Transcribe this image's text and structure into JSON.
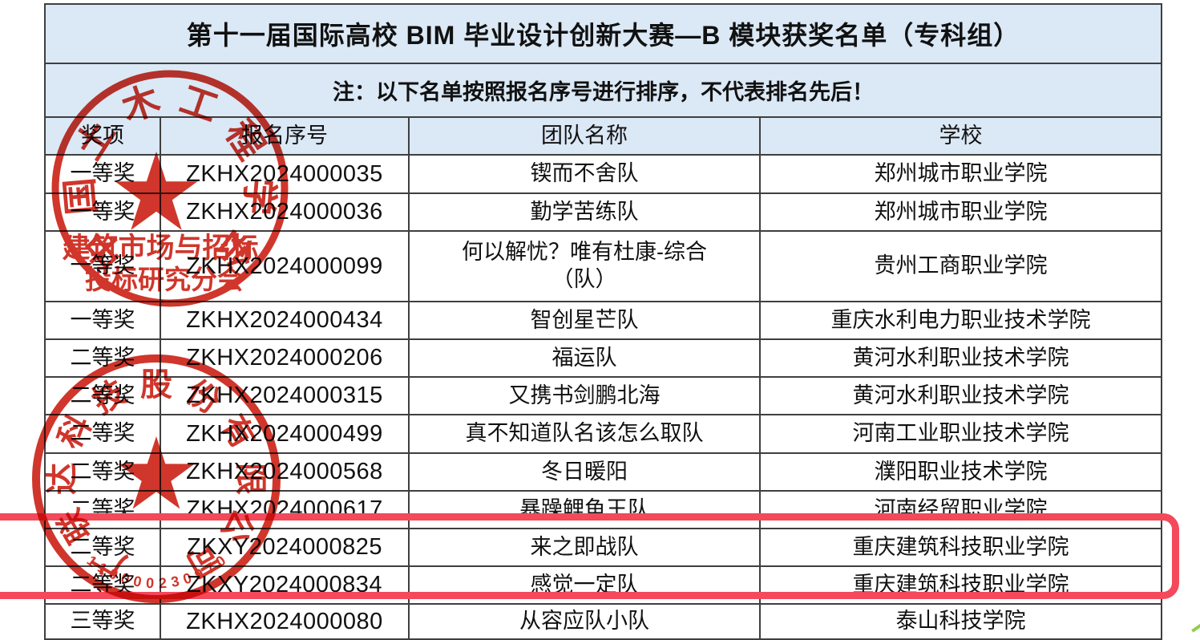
{
  "table": {
    "title": "第十一届国际高校 BIM 毕业设计创新大赛—B 模块获奖名单（专科组）",
    "note": "注：以下名单按照报名序号进行排序，不代表排名先后！",
    "headers": [
      "奖项",
      "报名序号",
      "团队名称",
      "学校"
    ],
    "rows": [
      {
        "award": "一等奖",
        "reg_no": "ZKHX2024000035",
        "team": "锲而不舍队",
        "school": "郑州城市职业学院"
      },
      {
        "award": "一等奖",
        "reg_no": "ZKHX2024000036",
        "team": "勤学苦练队",
        "school": "郑州城市职业学院"
      },
      {
        "award": "一等奖",
        "reg_no": "ZKHX2024000099",
        "team": "何以解忧？唯有杜康-综合\n（队）",
        "school": "贵州工商职业学院"
      },
      {
        "award": "一等奖",
        "reg_no": "ZKHX2024000434",
        "team": "智创星芒队",
        "school": "重庆水利电力职业技术学院"
      },
      {
        "award": "二等奖",
        "reg_no": "ZKHX2024000206",
        "team": "福运队",
        "school": "黄河水利职业技术学院"
      },
      {
        "award": "二等奖",
        "reg_no": "ZKHX2024000315",
        "team": "又携书剑鹏北海",
        "school": "黄河水利职业技术学院"
      },
      {
        "award": "二等奖",
        "reg_no": "ZKHX2024000499",
        "team": "真不知道队名该怎么取队",
        "school": "河南工业职业技术学院"
      },
      {
        "award": "二等奖",
        "reg_no": "ZKHX2024000568",
        "team": "冬日暖阳",
        "school": "濮阳职业技术学院"
      },
      {
        "award": "二等奖",
        "reg_no": "ZKHX2024000617",
        "team": "暴躁鲤鱼王队",
        "school": "河南经贸职业学院"
      },
      {
        "award": "二等奖",
        "reg_no": "ZKXY2024000825",
        "team": "来之即战队",
        "school": "重庆建筑科技职业学院",
        "highlighted": true
      },
      {
        "award": "二等奖",
        "reg_no": "ZKXY2024000834",
        "team": "感觉一定队",
        "school": "重庆建筑科技职业学院",
        "highlighted": true
      },
      {
        "award": "三等奖",
        "reg_no": "ZKHX2024000080",
        "team": "从容应队小队",
        "school": "泰山科技学院"
      }
    ]
  },
  "stamps": {
    "stamp1": {
      "ring_text": "中国土木工程学会",
      "center_line1": "建筑市场与招标",
      "center_line2": "投标研究分会",
      "icon": "star-icon"
    },
    "stamp2": {
      "ring_text": "广联达科技股份有限公司",
      "serial": "110000230970",
      "icon": "star-icon"
    }
  },
  "colors": {
    "stamp_red": "#cc2418",
    "highlight_red": "#f4495b",
    "band_blue": "#dbe8f5",
    "grid_line": "#3f3f3f",
    "text": "#111111"
  }
}
